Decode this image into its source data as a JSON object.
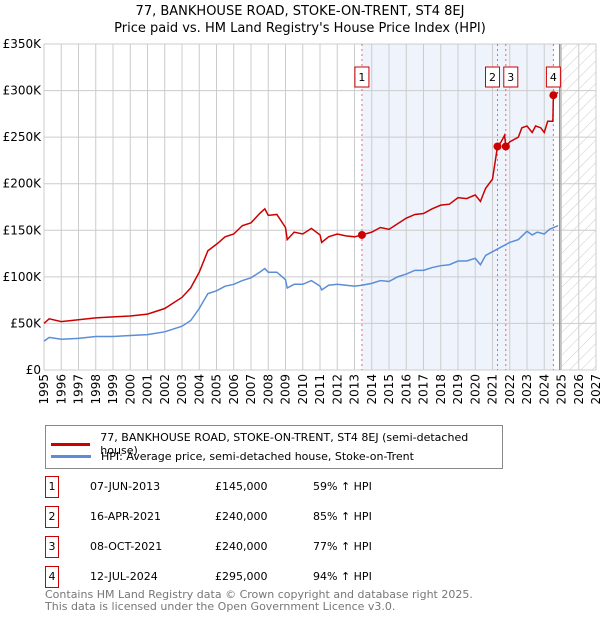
{
  "chart_data": {
    "type": "line",
    "title": "77, BANKHOUSE ROAD, STOKE-ON-TRENT, ST4 8EJ",
    "subtitle": "Price paid vs. HM Land Registry's House Price Index (HPI)",
    "xlim": [
      1995,
      2027
    ],
    "ylim": [
      0,
      350000
    ],
    "y_ticks": [
      {
        "v": 0,
        "label": "£0"
      },
      {
        "v": 50000,
        "label": "£50K"
      },
      {
        "v": 100000,
        "label": "£100K"
      },
      {
        "v": 150000,
        "label": "£150K"
      },
      {
        "v": 200000,
        "label": "£200K"
      },
      {
        "v": 250000,
        "label": "£250K"
      },
      {
        "v": 300000,
        "label": "£300K"
      },
      {
        "v": 350000,
        "label": "£350K"
      }
    ],
    "x_ticks": [
      "1995",
      "1996",
      "1997",
      "1998",
      "1999",
      "2000",
      "2001",
      "2002",
      "2003",
      "2004",
      "2005",
      "2006",
      "2007",
      "2008",
      "2009",
      "2010",
      "2011",
      "2012",
      "2013",
      "2014",
      "2015",
      "2016",
      "2017",
      "2018",
      "2019",
      "2020",
      "2021",
      "2022",
      "2023",
      "2024",
      "2025",
      "2026",
      "2027"
    ],
    "grid": true,
    "shaded_range": [
      2013.43,
      2024.53
    ],
    "forecast_hatch": [
      2025,
      2027
    ],
    "colors": {
      "property": "#cc0000",
      "hpi": "#5b8ed6",
      "shade": "#eef3fc"
    },
    "series": [
      {
        "name": "77, BANKHOUSE ROAD, STOKE-ON-TRENT, ST4 8EJ (semi-detached house)",
        "color": "#cc0000",
        "x": [
          1995,
          1995.3,
          1996,
          1997,
          1998,
          1999,
          2000,
          2001,
          2002,
          2003,
          2003.5,
          2004,
          2004.5,
          2005,
          2005.5,
          2006,
          2006.5,
          2007,
          2007.5,
          2007.8,
          2008,
          2008.5,
          2009,
          2009.1,
          2009.5,
          2010,
          2010.5,
          2011,
          2011.1,
          2011.5,
          2012,
          2012.5,
          2013,
          2013.43,
          2014,
          2014.5,
          2015,
          2015.5,
          2016,
          2016.5,
          2017,
          2017.5,
          2018,
          2018.5,
          2019,
          2019.5,
          2020,
          2020.3,
          2020.6,
          2021,
          2021.29,
          2021.5,
          2021.7,
          2021.77,
          2022,
          2022.5,
          2022.7,
          2023,
          2023.3,
          2023.5,
          2023.8,
          2024,
          2024.2,
          2024.5,
          2024.53,
          2024.8
        ],
        "y": [
          50000,
          55000,
          52000,
          54000,
          56000,
          57000,
          58000,
          60000,
          66000,
          78000,
          88000,
          105000,
          128000,
          135000,
          143000,
          146000,
          155000,
          158000,
          168000,
          173000,
          166000,
          167000,
          153000,
          140000,
          148000,
          146000,
          152000,
          145000,
          137000,
          143000,
          146000,
          144000,
          143000,
          145000,
          148000,
          153000,
          151000,
          157000,
          163000,
          167000,
          168000,
          173000,
          177000,
          178000,
          185000,
          184000,
          188000,
          181000,
          195000,
          205000,
          240000,
          245000,
          252000,
          240000,
          245000,
          250000,
          260000,
          262000,
          255000,
          262000,
          260000,
          255000,
          267000,
          267000,
          295000,
          298000
        ]
      },
      {
        "name": "HPI: Average price, semi-detached house, Stoke-on-Trent",
        "color": "#5b8ed6",
        "x": [
          1995,
          1995.3,
          1996,
          1997,
          1998,
          1999,
          2000,
          2001,
          2002,
          2003,
          2003.5,
          2004,
          2004.5,
          2005,
          2005.5,
          2006,
          2006.5,
          2007,
          2007.5,
          2007.8,
          2008,
          2008.5,
          2009,
          2009.1,
          2009.5,
          2010,
          2010.5,
          2011,
          2011.1,
          2011.5,
          2012,
          2012.5,
          2013,
          2013.43,
          2014,
          2014.5,
          2015,
          2015.5,
          2016,
          2016.5,
          2017,
          2017.5,
          2018,
          2018.5,
          2019,
          2019.5,
          2020,
          2020.3,
          2020.6,
          2021,
          2021.5,
          2022,
          2022.5,
          2023,
          2023.3,
          2023.6,
          2024,
          2024.3,
          2024.8
        ],
        "y": [
          31000,
          35000,
          33000,
          34000,
          36000,
          36000,
          37000,
          38000,
          41000,
          47000,
          53000,
          66000,
          82000,
          85000,
          90000,
          92000,
          96000,
          99000,
          105000,
          109000,
          105000,
          105000,
          97000,
          88000,
          92000,
          92000,
          96000,
          90000,
          86000,
          91000,
          92000,
          91000,
          90000,
          91000,
          93000,
          96000,
          95000,
          100000,
          103000,
          107000,
          107000,
          110000,
          112000,
          113000,
          117000,
          117000,
          120000,
          113000,
          123000,
          127000,
          132000,
          137000,
          140000,
          149000,
          145000,
          148000,
          146000,
          151000,
          155000
        ]
      }
    ],
    "sales": [
      {
        "num": "1",
        "x": 2013.43,
        "price": 145000,
        "date": "07-JUN-2013",
        "price_label": "£145,000",
        "hpi": "59% ↑ HPI"
      },
      {
        "num": "2",
        "x": 2021.29,
        "price": 240000,
        "date": "16-APR-2021",
        "price_label": "£240,000",
        "hpi": "85% ↑ HPI"
      },
      {
        "num": "3",
        "x": 2021.77,
        "price": 240000,
        "date": "08-OCT-2021",
        "price_label": "£240,000",
        "hpi": "77% ↑ HPI"
      },
      {
        "num": "4",
        "x": 2024.53,
        "price": 295000,
        "date": "12-JUL-2024",
        "price_label": "£295,000",
        "hpi": "94% ↑ HPI"
      }
    ]
  },
  "footer": {
    "line1": "Contains HM Land Registry data © Crown copyright and database right 2025.",
    "line2": "This data is licensed under the Open Government Licence v3.0."
  }
}
